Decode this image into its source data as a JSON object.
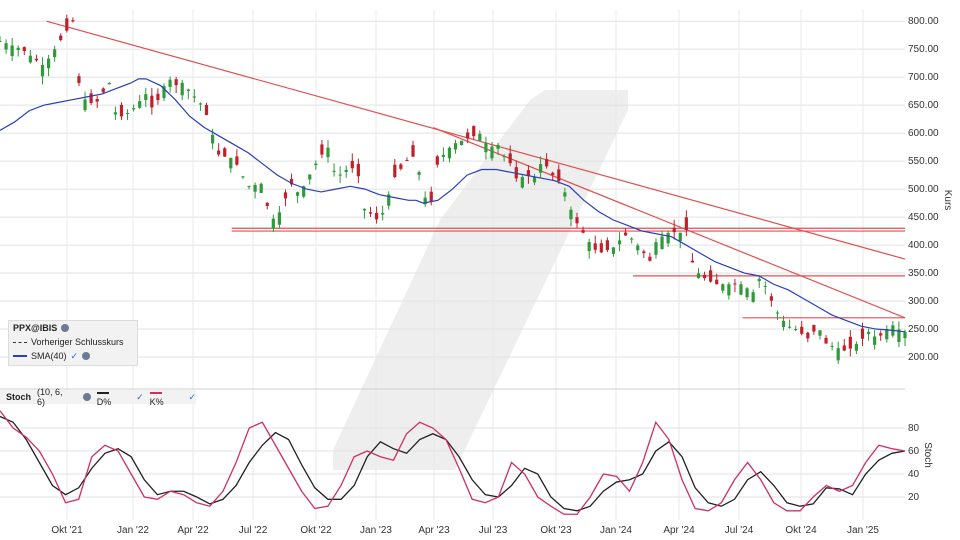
{
  "chart_data": [
    {
      "type": "candlestick",
      "ylabel": "Kurs",
      "ylim": [
        150,
        820
      ],
      "y_ticks": [
        "200.00",
        "250.00",
        "300.00",
        "350.00",
        "400.00",
        "450.00",
        "500.00",
        "550.00",
        "600.00",
        "650.00",
        "700.00",
        "750.00",
        "800.00"
      ],
      "x_ticks": [
        "Okt '21",
        "Jan '22",
        "Apr '22",
        "Jul '22",
        "Okt '22",
        "Jan '23",
        "Apr '23",
        "Jul '23",
        "Okt '23",
        "Jan '24",
        "Apr '24",
        "Jul '24",
        "Okt '24",
        "Jan '25"
      ],
      "legend": {
        "title": "PPX@IBIS",
        "items": [
          "Vorheriger Schlusskurs",
          "SMA(40)"
        ]
      },
      "price_path": [
        [
          0,
          765
        ],
        [
          3,
          750
        ],
        [
          6,
          720
        ],
        [
          9,
          780
        ],
        [
          10,
          800
        ],
        [
          11,
          665
        ],
        [
          13,
          650
        ],
        [
          15,
          690
        ],
        [
          16,
          625
        ],
        [
          18,
          640
        ],
        [
          20,
          670
        ],
        [
          21,
          640
        ],
        [
          23,
          700
        ],
        [
          24,
          685
        ],
        [
          25,
          690
        ],
        [
          27,
          660
        ],
        [
          28,
          645
        ],
        [
          30,
          560
        ],
        [
          32,
          555
        ],
        [
          34,
          505
        ],
        [
          36,
          510
        ],
        [
          37,
          445
        ],
        [
          38,
          450
        ],
        [
          40,
          510
        ],
        [
          41,
          490
        ],
        [
          43,
          540
        ],
        [
          44,
          560
        ],
        [
          45,
          575
        ],
        [
          46,
          520
        ],
        [
          48,
          540
        ],
        [
          49,
          530
        ],
        [
          50,
          460
        ],
        [
          51,
          455
        ],
        [
          52,
          440
        ],
        [
          54,
          520
        ],
        [
          56,
          555
        ],
        [
          57,
          560
        ],
        [
          58,
          490
        ],
        [
          59,
          470
        ],
        [
          60,
          550
        ],
        [
          62,
          580
        ],
        [
          64,
          590
        ],
        [
          66,
          600
        ],
        [
          67,
          570
        ],
        [
          68,
          585
        ],
        [
          69,
          560
        ],
        [
          70,
          545
        ],
        [
          71,
          510
        ],
        [
          72,
          530
        ],
        [
          73,
          515
        ],
        [
          74,
          545
        ],
        [
          75,
          540
        ],
        [
          76,
          520
        ],
        [
          77,
          510
        ],
        [
          78,
          470
        ],
        [
          79,
          440
        ],
        [
          80,
          420
        ],
        [
          81,
          400
        ],
        [
          82,
          385
        ],
        [
          84,
          395
        ],
        [
          85,
          410
        ],
        [
          86,
          420
        ],
        [
          88,
          390
        ],
        [
          89,
          370
        ],
        [
          90,
          410
        ],
        [
          92,
          425
        ],
        [
          93,
          420
        ],
        [
          94,
          430
        ],
        [
          95,
          360
        ],
        [
          96,
          345
        ],
        [
          98,
          330
        ],
        [
          100,
          330
        ],
        [
          102,
          330
        ],
        [
          103,
          310
        ],
        [
          104,
          340
        ],
        [
          105,
          325
        ],
        [
          106,
          290
        ],
        [
          107,
          270
        ],
        [
          108,
          255
        ],
        [
          109,
          250
        ],
        [
          110,
          240
        ],
        [
          111,
          230
        ],
        [
          112,
          260
        ],
        [
          113,
          225
        ],
        [
          114,
          220
        ],
        [
          115,
          215
        ],
        [
          116,
          210
        ],
        [
          118,
          230
        ],
        [
          119,
          245
        ],
        [
          120,
          235
        ],
        [
          121,
          240
        ],
        [
          122,
          260
        ],
        [
          123,
          250
        ],
        [
          124,
          245
        ]
      ],
      "sma40_path": [
        [
          0,
          605
        ],
        [
          2,
          620
        ],
        [
          4,
          640
        ],
        [
          6,
          650
        ],
        [
          8,
          655
        ],
        [
          10,
          660
        ],
        [
          12,
          665
        ],
        [
          14,
          670
        ],
        [
          16,
          680
        ],
        [
          18,
          690
        ],
        [
          19,
          697
        ],
        [
          20,
          697
        ],
        [
          22,
          685
        ],
        [
          24,
          660
        ],
        [
          26,
          630
        ],
        [
          28,
          610
        ],
        [
          30,
          595
        ],
        [
          32,
          580
        ],
        [
          34,
          565
        ],
        [
          36,
          545
        ],
        [
          38,
          525
        ],
        [
          40,
          510
        ],
        [
          42,
          500
        ],
        [
          44,
          495
        ],
        [
          46,
          500
        ],
        [
          48,
          505
        ],
        [
          50,
          500
        ],
        [
          51,
          495
        ],
        [
          52,
          490
        ],
        [
          54,
          485
        ],
        [
          56,
          480
        ],
        [
          57,
          480
        ],
        [
          58,
          475
        ],
        [
          60,
          480
        ],
        [
          62,
          500
        ],
        [
          64,
          525
        ],
        [
          66,
          535
        ],
        [
          68,
          535
        ],
        [
          70,
          530
        ],
        [
          72,
          525
        ],
        [
          74,
          520
        ],
        [
          76,
          515
        ],
        [
          78,
          505
        ],
        [
          80,
          480
        ],
        [
          82,
          460
        ],
        [
          84,
          445
        ],
        [
          86,
          435
        ],
        [
          88,
          425
        ],
        [
          90,
          420
        ],
        [
          92,
          415
        ],
        [
          94,
          400
        ],
        [
          96,
          385
        ],
        [
          98,
          370
        ],
        [
          100,
          360
        ],
        [
          102,
          350
        ],
        [
          104,
          345
        ],
        [
          106,
          330
        ],
        [
          108,
          320
        ],
        [
          110,
          305
        ],
        [
          112,
          290
        ],
        [
          114,
          275
        ],
        [
          116,
          265
        ],
        [
          118,
          255
        ],
        [
          120,
          250
        ],
        [
          122,
          248
        ],
        [
          124,
          245
        ]
      ],
      "horizontal_levels": [
        {
          "y": 425,
          "x_from": 29,
          "x_to": 124
        },
        {
          "y": 430,
          "x_from": 29,
          "x_to": 124
        },
        {
          "y": 345,
          "x_from": 84,
          "x_to": 124
        },
        {
          "y": 270,
          "x_from": 99,
          "x_to": 124
        }
      ],
      "trend_lines": [
        {
          "from": [
            5,
            800
          ],
          "to": [
            124,
            375
          ]
        },
        {
          "from": [
            58,
            610
          ],
          "to": [
            124,
            270
          ]
        }
      ],
      "x_domain": [
        0,
        124
      ]
    },
    {
      "type": "line",
      "title": "Stoch",
      "params": "(10, 6, 6)",
      "series": [
        {
          "name": "D%",
          "color": "#222222",
          "values": [
            [
              0,
              90
            ],
            [
              2,
              85
            ],
            [
              4,
              70
            ],
            [
              6,
              50
            ],
            [
              8,
              30
            ],
            [
              10,
              22
            ],
            [
              12,
              28
            ],
            [
              14,
              45
            ],
            [
              16,
              58
            ],
            [
              18,
              62
            ],
            [
              20,
              55
            ],
            [
              22,
              35
            ],
            [
              24,
              22
            ],
            [
              26,
              25
            ],
            [
              28,
              25
            ],
            [
              30,
              20
            ],
            [
              32,
              14
            ],
            [
              34,
              18
            ],
            [
              36,
              30
            ],
            [
              38,
              50
            ],
            [
              40,
              65
            ],
            [
              42,
              76
            ],
            [
              44,
              70
            ],
            [
              46,
              48
            ],
            [
              48,
              28
            ],
            [
              50,
              18
            ],
            [
              52,
              18
            ],
            [
              54,
              30
            ],
            [
              56,
              55
            ],
            [
              58,
              68
            ],
            [
              60,
              62
            ],
            [
              62,
              58
            ],
            [
              64,
              70
            ],
            [
              66,
              75
            ],
            [
              68,
              70
            ],
            [
              70,
              55
            ],
            [
              72,
              35
            ],
            [
              74,
              22
            ],
            [
              76,
              20
            ],
            [
              78,
              30
            ],
            [
              80,
              45
            ],
            [
              82,
              40
            ],
            [
              84,
              20
            ],
            [
              86,
              10
            ],
            [
              88,
              8
            ],
            [
              90,
              12
            ],
            [
              92,
              25
            ],
            [
              94,
              33
            ],
            [
              96,
              35
            ],
            [
              98,
              40
            ],
            [
              100,
              60
            ],
            [
              102,
              68
            ],
            [
              104,
              55
            ],
            [
              106,
              28
            ],
            [
              108,
              15
            ],
            [
              110,
              12
            ],
            [
              112,
              18
            ],
            [
              114,
              35
            ],
            [
              116,
              42
            ],
            [
              118,
              30
            ],
            [
              120,
              15
            ],
            [
              122,
              12
            ],
            [
              124,
              14
            ],
            [
              126,
              28
            ],
            [
              128,
              27
            ],
            [
              130,
              22
            ],
            [
              132,
              40
            ],
            [
              134,
              52
            ],
            [
              136,
              58
            ],
            [
              138,
              60
            ]
          ]
        },
        {
          "name": "K%",
          "color": "#d03060",
          "values": [
            [
              0,
              95
            ],
            [
              2,
              80
            ],
            [
              4,
              72
            ],
            [
              6,
              60
            ],
            [
              8,
              40
            ],
            [
              10,
              15
            ],
            [
              12,
              18
            ],
            [
              14,
              55
            ],
            [
              16,
              65
            ],
            [
              18,
              60
            ],
            [
              20,
              40
            ],
            [
              22,
              20
            ],
            [
              24,
              18
            ],
            [
              26,
              25
            ],
            [
              28,
              22
            ],
            [
              30,
              15
            ],
            [
              32,
              12
            ],
            [
              34,
              25
            ],
            [
              36,
              50
            ],
            [
              38,
              80
            ],
            [
              40,
              85
            ],
            [
              42,
              65
            ],
            [
              44,
              45
            ],
            [
              46,
              25
            ],
            [
              48,
              10
            ],
            [
              50,
              12
            ],
            [
              52,
              30
            ],
            [
              54,
              55
            ],
            [
              56,
              60
            ],
            [
              58,
              55
            ],
            [
              60,
              52
            ],
            [
              62,
              75
            ],
            [
              64,
              85
            ],
            [
              66,
              80
            ],
            [
              68,
              70
            ],
            [
              70,
              45
            ],
            [
              72,
              18
            ],
            [
              74,
              15
            ],
            [
              76,
              20
            ],
            [
              78,
              50
            ],
            [
              80,
              40
            ],
            [
              82,
              20
            ],
            [
              84,
              12
            ],
            [
              86,
              5
            ],
            [
              88,
              5
            ],
            [
              90,
              20
            ],
            [
              92,
              40
            ],
            [
              94,
              38
            ],
            [
              96,
              25
            ],
            [
              98,
              50
            ],
            [
              100,
              85
            ],
            [
              102,
              70
            ],
            [
              104,
              35
            ],
            [
              106,
              10
            ],
            [
              108,
              8
            ],
            [
              110,
              15
            ],
            [
              112,
              35
            ],
            [
              114,
              50
            ],
            [
              116,
              35
            ],
            [
              118,
              15
            ],
            [
              120,
              8
            ],
            [
              122,
              8
            ],
            [
              124,
              20
            ],
            [
              126,
              30
            ],
            [
              128,
              25
            ],
            [
              130,
              30
            ],
            [
              132,
              50
            ],
            [
              134,
              65
            ],
            [
              136,
              62
            ],
            [
              138,
              60
            ]
          ]
        }
      ],
      "ylim": [
        0,
        100
      ],
      "y_ticks": [
        "20",
        "40",
        "60",
        "80"
      ],
      "x_domain": [
        0,
        138
      ]
    }
  ]
}
